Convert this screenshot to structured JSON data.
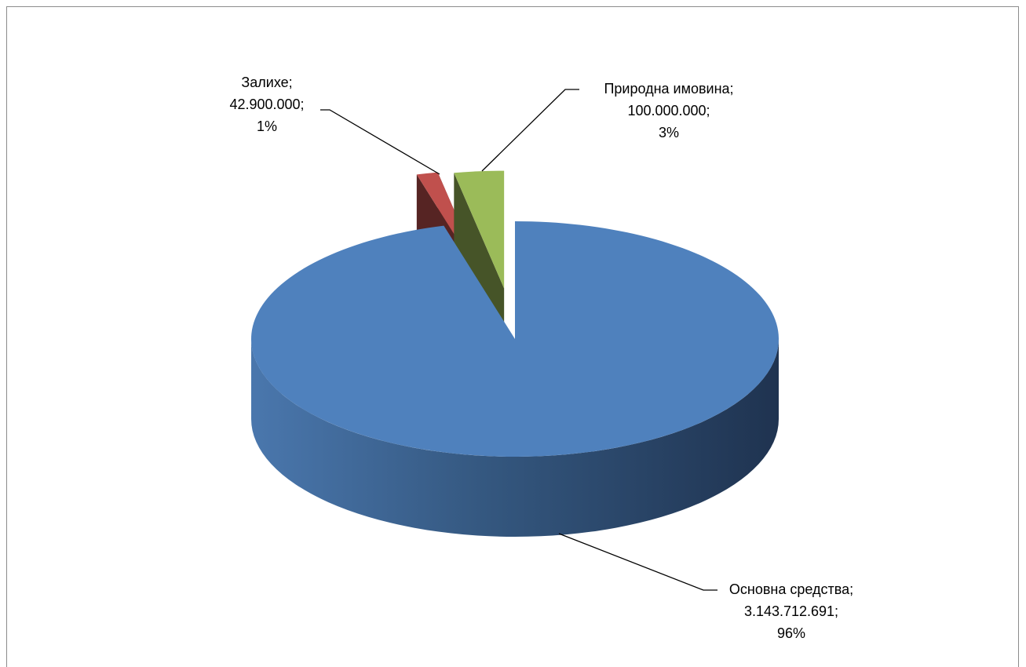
{
  "chart_data": {
    "type": "pie",
    "style": "3d-exploded",
    "slices": [
      {
        "name": "Основна средства",
        "value": 3143712691,
        "value_label": "3.143.712.691;",
        "percent_label": "96%",
        "name_label": "Основна средства;",
        "color": "#4F81BD"
      },
      {
        "name": "Залихе",
        "value": 42900000,
        "value_label": "42.900.000;",
        "percent_label": "1%",
        "name_label": "Залихе;",
        "color": "#C0504D"
      },
      {
        "name": "Природна имовина",
        "value": 100000000,
        "value_label": "100.000.000;",
        "percent_label": "3%",
        "name_label": "Природна имовина;",
        "color": "#9BBB59"
      }
    ],
    "legend": "none",
    "data_labels": "outside with leader lines"
  }
}
